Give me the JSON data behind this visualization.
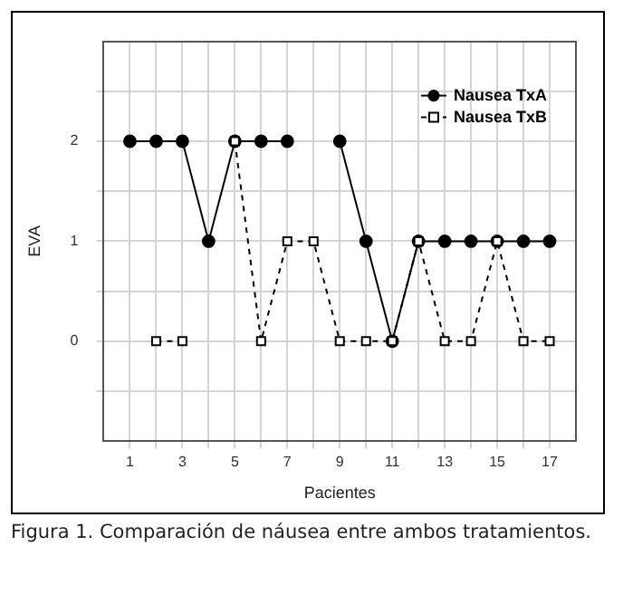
{
  "chart_data": {
    "type": "line",
    "xlabel": "Pacientes",
    "ylabel": "EVA",
    "x": [
      1,
      2,
      3,
      4,
      5,
      6,
      7,
      8,
      9,
      10,
      11,
      12,
      13,
      14,
      15,
      16,
      17
    ],
    "series": [
      {
        "name": "Nausea TxA",
        "color": "#000000",
        "marker": "circle",
        "line_style": "solid",
        "values": [
          2,
          2,
          2,
          1,
          2,
          2,
          2,
          null,
          2,
          1,
          0,
          1,
          1,
          1,
          1,
          1,
          1
        ]
      },
      {
        "name": "Nausea TxB",
        "color": "#000000",
        "marker": "square",
        "line_style": "dashed",
        "values": [
          null,
          0,
          0,
          null,
          2,
          0,
          1,
          1,
          0,
          0,
          0,
          1,
          0,
          0,
          1,
          0,
          0
        ]
      }
    ],
    "xlim": [
      0,
      18
    ],
    "xticks": [
      1,
      {
        "value": 2,
        "label": null
      },
      3,
      {
        "value": 4,
        "label": null
      },
      5,
      {
        "value": 6,
        "label": null
      },
      7,
      {
        "value": 8,
        "label": null
      },
      9,
      {
        "value": 10,
        "label": null
      },
      11,
      {
        "value": 12,
        "label": null
      },
      13,
      {
        "value": 14,
        "label": null
      },
      15,
      {
        "value": 16,
        "label": null
      },
      17
    ],
    "ylim": [
      -1,
      3
    ],
    "yticks": [
      {
        "value": -0.5,
        "label": null
      },
      0,
      {
        "value": 0.5,
        "label": null
      },
      1,
      {
        "value": 1.5,
        "label": null
      },
      2,
      {
        "value": 2.5,
        "label": null
      }
    ],
    "grid": true,
    "legend": "top right",
    "annotations": [
      "Figura 1. Comparación de náusea entre ambos tratamientos."
    ]
  }
}
